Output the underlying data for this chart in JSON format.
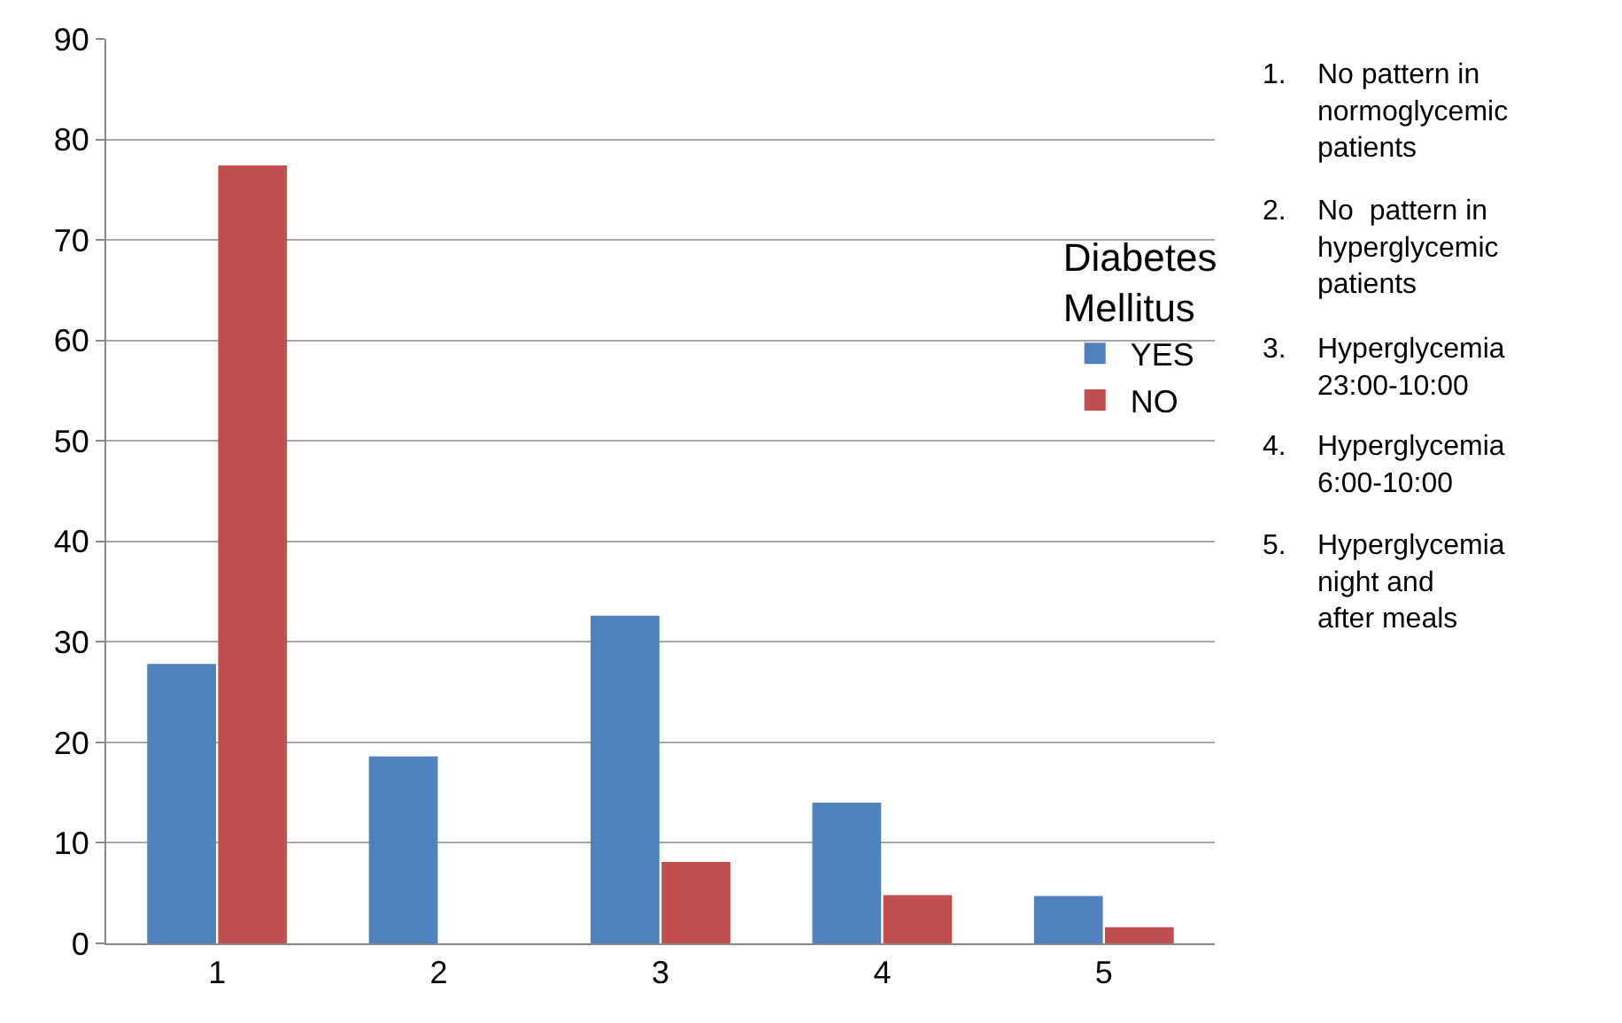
{
  "chart_data": {
    "type": "bar",
    "categories": [
      "1",
      "2",
      "3",
      "4",
      "5"
    ],
    "series": [
      {
        "name": "YES",
        "color": "#4f81bd",
        "values": [
          27.8,
          18.6,
          32.6,
          14.0,
          4.7
        ]
      },
      {
        "name": "NO",
        "color": "#c0504d",
        "values": [
          77.4,
          0,
          8.1,
          4.8,
          1.6
        ]
      }
    ],
    "ylim": [
      0,
      90
    ],
    "yticks": [
      0,
      10,
      20,
      30,
      40,
      50,
      60,
      70,
      80,
      90
    ],
    "grid": "y",
    "legend": "right",
    "legend_title": "Diabetes Mellitus",
    "annotations": [
      "1. No pattern in normoglycemic patients",
      "2. No  pattern in hyperglycemic patients",
      "3. Hyperglycemia 23:00-10:00",
      "4. Hyperglycemia 6:00-10:00",
      "5. Hyperglycemia night and after meals"
    ]
  }
}
